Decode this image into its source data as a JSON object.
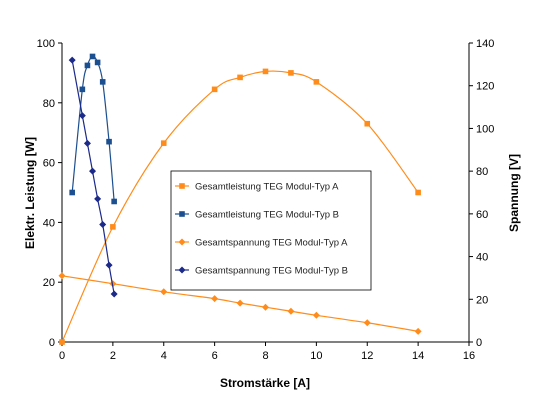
{
  "chart_data": {
    "type": "line",
    "xlabel": "Stromstärke [A]",
    "ylabel": "Elektr. Leistung [W]",
    "y2label": "Spannung [V]",
    "xlim": [
      0,
      16
    ],
    "ylim": [
      0,
      100
    ],
    "y2lim": [
      0,
      140
    ],
    "xticks": [
      "0",
      "2",
      "4",
      "6",
      "8",
      "10",
      "12",
      "14",
      "16"
    ],
    "yticks": [
      "0",
      "20",
      "40",
      "60",
      "80",
      "100"
    ],
    "y2ticks": [
      "0",
      "20",
      "40",
      "60",
      "80",
      "100",
      "120",
      "140"
    ],
    "grid": false,
    "legend_position": "center",
    "series": [
      {
        "name": "Gesamtleistung TEG Modul-Typ A",
        "axis": "left",
        "color": "#ff8c1a",
        "marker": "square",
        "x": [
          0,
          2,
          4,
          6,
          7,
          8,
          9,
          10,
          12,
          14
        ],
        "y": [
          0,
          38.5,
          66.5,
          84.5,
          88.5,
          90.5,
          90,
          87,
          73,
          50
        ]
      },
      {
        "name": "Gesamtleistung TEG Modul-Typ B",
        "axis": "left",
        "color": "#1c4f8f",
        "marker": "square",
        "x": [
          0.4,
          0.8,
          1.0,
          1.2,
          1.4,
          1.6,
          1.85,
          2.05
        ],
        "y": [
          50,
          84.5,
          92.5,
          95.5,
          93.5,
          87,
          67,
          47
        ]
      },
      {
        "name": "Gesamtspannung TEG Modul-Typ A",
        "axis": "right",
        "color": "#ff8c1a",
        "marker": "diamond",
        "x": [
          0,
          2,
          4,
          6,
          7,
          8,
          9,
          10,
          12,
          14
        ],
        "y": [
          31,
          27.3,
          23.5,
          20.3,
          18.2,
          16.3,
          14.4,
          12.5,
          9,
          5
        ]
      },
      {
        "name": "Gesamtspannung TEG Modul-Typ B",
        "axis": "right",
        "color": "#1c2a8a",
        "marker": "diamond",
        "x": [
          0.4,
          0.8,
          1.0,
          1.2,
          1.4,
          1.6,
          1.85,
          2.05
        ],
        "y": [
          132,
          106,
          93,
          80,
          67,
          55,
          36,
          22.5
        ]
      }
    ]
  }
}
